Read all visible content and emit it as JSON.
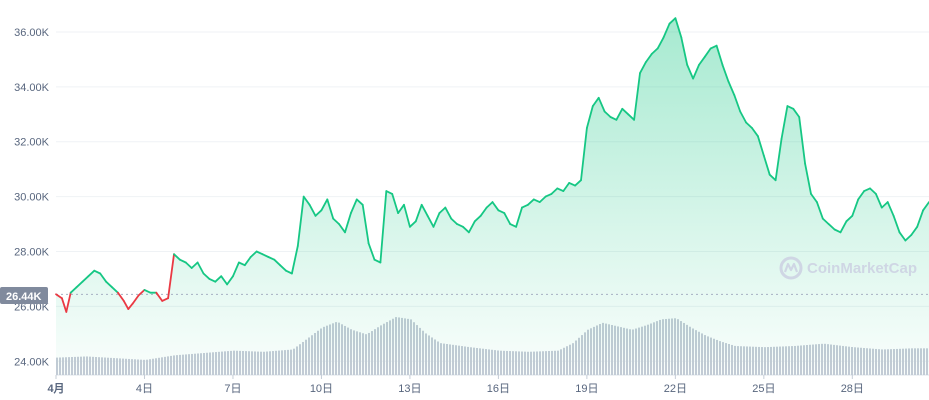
{
  "chart_data": {
    "type": "line",
    "title": "",
    "xlabel": "",
    "ylabel": "",
    "ylim": [
      23500,
      36800
    ],
    "y_ticks": [
      "24.00K",
      "26.00K",
      "28.00K",
      "30.00K",
      "32.00K",
      "34.00K",
      "36.00K"
    ],
    "x_ticks": [
      "4月",
      "4日",
      "7日",
      "10日",
      "13日",
      "16日",
      "19日",
      "22日",
      "25日",
      "28日"
    ],
    "reference_value": 26440,
    "reference_label": "26.44K",
    "grid": true,
    "colors": {
      "up": "#16c784",
      "down": "#ea3943",
      "volume": "#c6cbd7",
      "reference_badge": "#808a9d"
    },
    "series": [
      {
        "values": [
          [
            1.0,
            26440
          ],
          [
            1.2,
            26300
          ],
          [
            1.35,
            25800
          ],
          [
            1.5,
            26500
          ],
          [
            1.7,
            26700
          ],
          [
            1.9,
            26900
          ],
          [
            2.1,
            27100
          ],
          [
            2.3,
            27300
          ],
          [
            2.5,
            27200
          ],
          [
            2.7,
            26900
          ],
          [
            2.9,
            26700
          ],
          [
            3.1,
            26500
          ],
          [
            3.3,
            26200
          ],
          [
            3.45,
            25900
          ],
          [
            3.6,
            26100
          ],
          [
            3.8,
            26400
          ],
          [
            4.0,
            26600
          ],
          [
            4.2,
            26500
          ],
          [
            4.4,
            26500
          ],
          [
            4.6,
            26200
          ],
          [
            4.8,
            26300
          ],
          [
            5.0,
            27900
          ],
          [
            5.2,
            27700
          ],
          [
            5.4,
            27600
          ],
          [
            5.6,
            27400
          ],
          [
            5.8,
            27600
          ],
          [
            6.0,
            27200
          ],
          [
            6.2,
            27000
          ],
          [
            6.4,
            26900
          ],
          [
            6.6,
            27100
          ],
          [
            6.8,
            26800
          ],
          [
            7.0,
            27100
          ],
          [
            7.2,
            27600
          ],
          [
            7.4,
            27500
          ],
          [
            7.6,
            27800
          ],
          [
            7.8,
            28000
          ],
          [
            8.0,
            27900
          ],
          [
            8.2,
            27800
          ],
          [
            8.4,
            27700
          ],
          [
            8.6,
            27500
          ],
          [
            8.8,
            27300
          ],
          [
            9.0,
            27200
          ],
          [
            9.2,
            28200
          ],
          [
            9.4,
            30000
          ],
          [
            9.6,
            29700
          ],
          [
            9.8,
            29300
          ],
          [
            10.0,
            29500
          ],
          [
            10.2,
            29900
          ],
          [
            10.4,
            29200
          ],
          [
            10.6,
            29000
          ],
          [
            10.8,
            28700
          ],
          [
            11.0,
            29400
          ],
          [
            11.2,
            29900
          ],
          [
            11.4,
            29700
          ],
          [
            11.6,
            28300
          ],
          [
            11.8,
            27700
          ],
          [
            12.0,
            27600
          ],
          [
            12.2,
            30200
          ],
          [
            12.4,
            30100
          ],
          [
            12.6,
            29400
          ],
          [
            12.8,
            29700
          ],
          [
            13.0,
            28900
          ],
          [
            13.2,
            29100
          ],
          [
            13.4,
            29700
          ],
          [
            13.6,
            29300
          ],
          [
            13.8,
            28900
          ],
          [
            14.0,
            29400
          ],
          [
            14.2,
            29600
          ],
          [
            14.4,
            29200
          ],
          [
            14.6,
            29000
          ],
          [
            14.8,
            28900
          ],
          [
            15.0,
            28700
          ],
          [
            15.2,
            29100
          ],
          [
            15.4,
            29300
          ],
          [
            15.6,
            29600
          ],
          [
            15.8,
            29800
          ],
          [
            16.0,
            29500
          ],
          [
            16.2,
            29400
          ],
          [
            16.4,
            29000
          ],
          [
            16.6,
            28900
          ],
          [
            16.8,
            29600
          ],
          [
            17.0,
            29700
          ],
          [
            17.2,
            29900
          ],
          [
            17.4,
            29800
          ],
          [
            17.6,
            30000
          ],
          [
            17.8,
            30100
          ],
          [
            18.0,
            30300
          ],
          [
            18.2,
            30200
          ],
          [
            18.4,
            30500
          ],
          [
            18.6,
            30400
          ],
          [
            18.8,
            30600
          ],
          [
            19.0,
            32500
          ],
          [
            19.2,
            33300
          ],
          [
            19.4,
            33600
          ],
          [
            19.6,
            33100
          ],
          [
            19.8,
            32900
          ],
          [
            20.0,
            32800
          ],
          [
            20.2,
            33200
          ],
          [
            20.4,
            33000
          ],
          [
            20.6,
            32800
          ],
          [
            20.8,
            34500
          ],
          [
            21.0,
            34900
          ],
          [
            21.2,
            35200
          ],
          [
            21.4,
            35400
          ],
          [
            21.6,
            35800
          ],
          [
            21.8,
            36300
          ],
          [
            22.0,
            36500
          ],
          [
            22.2,
            35800
          ],
          [
            22.4,
            34800
          ],
          [
            22.6,
            34300
          ],
          [
            22.8,
            34800
          ],
          [
            23.0,
            35100
          ],
          [
            23.2,
            35400
          ],
          [
            23.4,
            35500
          ],
          [
            23.6,
            34800
          ],
          [
            23.8,
            34200
          ],
          [
            24.0,
            33700
          ],
          [
            24.2,
            33100
          ],
          [
            24.4,
            32700
          ],
          [
            24.6,
            32500
          ],
          [
            24.8,
            32200
          ],
          [
            25.0,
            31500
          ],
          [
            25.2,
            30800
          ],
          [
            25.4,
            30600
          ],
          [
            25.6,
            32100
          ],
          [
            25.8,
            33300
          ],
          [
            26.0,
            33200
          ],
          [
            26.2,
            32900
          ],
          [
            26.4,
            31200
          ],
          [
            26.6,
            30100
          ],
          [
            26.8,
            29800
          ],
          [
            27.0,
            29200
          ],
          [
            27.2,
            29000
          ],
          [
            27.4,
            28800
          ],
          [
            27.6,
            28700
          ],
          [
            27.8,
            29100
          ],
          [
            28.0,
            29300
          ],
          [
            28.2,
            29900
          ],
          [
            28.4,
            30200
          ],
          [
            28.6,
            30300
          ],
          [
            28.8,
            30100
          ],
          [
            29.0,
            29600
          ],
          [
            29.2,
            29800
          ],
          [
            29.4,
            29300
          ],
          [
            29.6,
            28700
          ],
          [
            29.8,
            28400
          ],
          [
            30.0,
            28600
          ],
          [
            30.2,
            28900
          ],
          [
            30.4,
            29500
          ],
          [
            30.6,
            29800
          ]
        ]
      }
    ],
    "volume_series": [
      [
        1,
        0.3
      ],
      [
        2,
        0.32
      ],
      [
        3,
        0.29
      ],
      [
        4,
        0.26
      ],
      [
        5,
        0.34
      ],
      [
        6,
        0.38
      ],
      [
        7,
        0.42
      ],
      [
        8,
        0.4
      ],
      [
        9,
        0.44
      ],
      [
        10,
        0.82
      ],
      [
        10.5,
        0.92
      ],
      [
        11,
        0.78
      ],
      [
        11.5,
        0.7
      ],
      [
        12,
        0.86
      ],
      [
        12.5,
        1.0
      ],
      [
        13,
        0.96
      ],
      [
        13.5,
        0.72
      ],
      [
        14,
        0.55
      ],
      [
        15,
        0.48
      ],
      [
        16,
        0.42
      ],
      [
        17,
        0.4
      ],
      [
        18,
        0.42
      ],
      [
        18.5,
        0.55
      ],
      [
        19,
        0.78
      ],
      [
        19.5,
        0.9
      ],
      [
        20,
        0.84
      ],
      [
        20.5,
        0.78
      ],
      [
        21,
        0.86
      ],
      [
        21.5,
        0.96
      ],
      [
        22,
        0.98
      ],
      [
        22.5,
        0.82
      ],
      [
        23,
        0.68
      ],
      [
        23.5,
        0.58
      ],
      [
        24,
        0.5
      ],
      [
        25,
        0.48
      ],
      [
        26,
        0.5
      ],
      [
        27,
        0.54
      ],
      [
        28,
        0.48
      ],
      [
        29,
        0.44
      ],
      [
        30,
        0.46
      ],
      [
        30.6,
        0.46
      ]
    ]
  },
  "watermark": {
    "text": "CoinMarketCap",
    "icon": "coinmarketcap-logo-icon"
  }
}
